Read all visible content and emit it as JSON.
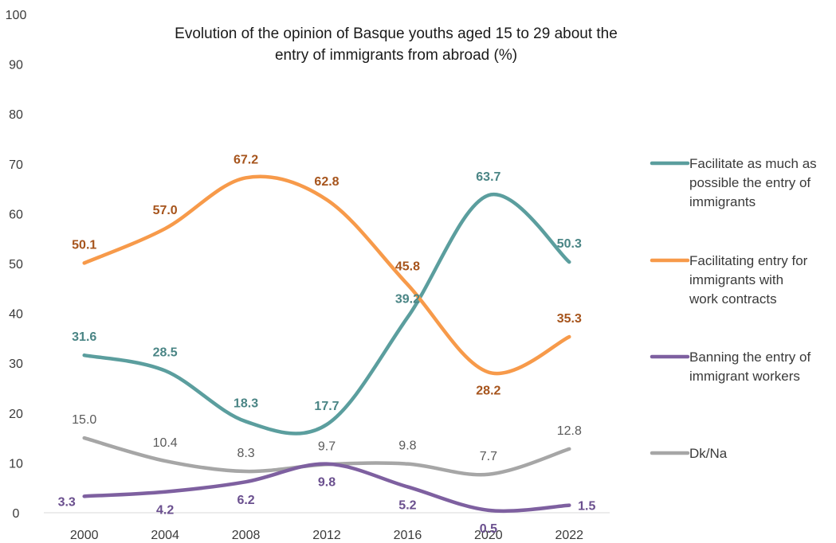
{
  "chart_data": {
    "type": "line",
    "title_lines": [
      "Evolution of the opinion of Basque youths aged 15 to 29 about the",
      "entry of immigrants from abroad (%)"
    ],
    "categories": [
      "2000",
      "2004",
      "2008",
      "2012",
      "2016",
      "2020",
      "2022"
    ],
    "yticks": [
      "0",
      "10",
      "20",
      "30",
      "40",
      "50",
      "60",
      "70",
      "80",
      "90",
      "100"
    ],
    "ylim": [
      0,
      100
    ],
    "grid": false,
    "legend_position": "right",
    "series": [
      {
        "name": "Facilitate as much as possible the entry of immigrants",
        "legend_lines": [
          "Facilitate as much as",
          "possible the entry of",
          "immigrants"
        ],
        "color": "#5b9e9e",
        "label_color": "#4a8585",
        "label_bold": true,
        "values": [
          31.6,
          28.5,
          18.3,
          17.7,
          39.2,
          63.7,
          50.3
        ],
        "labels": [
          "31.6",
          "28.5",
          "18.3",
          "17.7",
          "39.2",
          "63.7",
          "50.3"
        ]
      },
      {
        "name": "Facilitating entry for immigrants with work contracts",
        "legend_lines": [
          "Facilitating entry for",
          "immigrants with",
          "work contracts"
        ],
        "color": "#f79a4a",
        "label_color": "#a6541c",
        "label_bold": true,
        "values": [
          50.1,
          57.0,
          67.2,
          62.8,
          45.8,
          28.2,
          35.3
        ],
        "labels": [
          "50.1",
          "57.0",
          "67.2",
          "62.8",
          "45.8",
          "28.2",
          "35.3"
        ]
      },
      {
        "name": "Banning the entry of immigrant workers",
        "legend_lines": [
          "Banning the entry of",
          "immigrant workers"
        ],
        "color": "#7e60a0",
        "label_color": "#6a4f8e",
        "label_bold": true,
        "values": [
          3.3,
          4.2,
          6.2,
          9.8,
          5.2,
          0.5,
          1.5
        ],
        "labels": [
          "3.3",
          "4.2",
          "6.2",
          "9.8",
          "5.2",
          "0.5",
          "1.5"
        ]
      },
      {
        "name": "Dk/Na",
        "legend_lines": [
          "Dk/Na"
        ],
        "color": "#a6a6a6",
        "label_color": "#5a5a5a",
        "label_bold": false,
        "values": [
          15.0,
          10.4,
          8.3,
          9.7,
          9.8,
          7.7,
          12.8
        ],
        "labels": [
          "15.0",
          "10.4",
          "8.3",
          "9.7",
          "9.8",
          "7.7",
          "12.8"
        ]
      }
    ]
  }
}
